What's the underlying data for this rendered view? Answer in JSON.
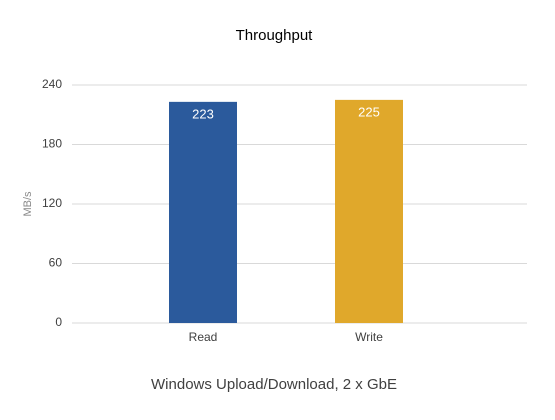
{
  "chart_data": {
    "type": "bar",
    "title": "Throughput",
    "x_label": "Windows Upload/Download, 2 x GbE",
    "y_label": "MB/s",
    "categories": [
      "Read",
      "Write"
    ],
    "values": [
      223,
      225
    ],
    "colors": [
      "#2b5a9c",
      "#e0a82b"
    ],
    "ylim": [
      0,
      240
    ],
    "yticks": [
      0,
      60,
      120,
      180,
      240
    ],
    "grid": true
  }
}
